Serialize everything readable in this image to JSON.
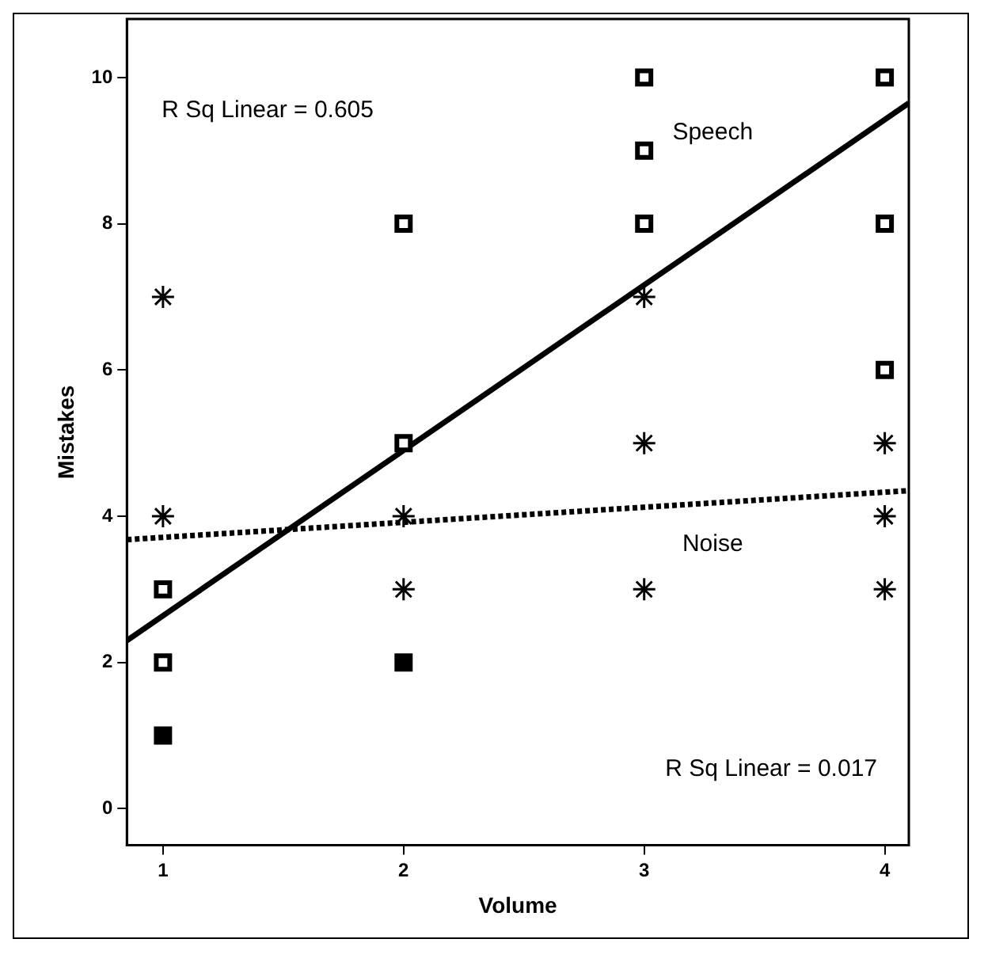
{
  "chart_data": {
    "type": "scatter",
    "xlabel": "Volume",
    "ylabel": "Mistakes",
    "xlim": [
      0.85,
      4.1
    ],
    "xticks": [
      1,
      2,
      3,
      4
    ],
    "ylim": [
      -0.5,
      10.8
    ],
    "yticks": [
      0,
      2,
      4,
      6,
      8,
      10
    ],
    "grid": false,
    "legend": false,
    "series": [
      {
        "marker": "square",
        "color": "#000000",
        "x": [
          1,
          1,
          2,
          2,
          3,
          3,
          3,
          4,
          4,
          4
        ],
        "values": [
          3,
          2,
          8,
          5,
          10,
          9,
          8,
          10,
          8,
          6
        ]
      },
      {
        "marker": "square",
        "color": "#000000",
        "colors": [
          "#000000",
          "#000000"
        ],
        "x": [
          1,
          2
        ],
        "values": [
          1,
          2
        ]
      },
      {
        "marker": "cross",
        "color": "#000000",
        "x": [
          1,
          1,
          2,
          2,
          3,
          3,
          3,
          4,
          4,
          4
        ],
        "values": [
          7,
          4,
          4,
          3,
          7,
          5,
          3,
          5,
          4,
          3
        ]
      },
      {
        "type": "line",
        "marker": "none",
        "line_style": "solid",
        "color": "#000000",
        "x": [
          0.85,
          4.1
        ],
        "values": [
          2.3,
          9.65
        ]
      },
      {
        "type": "line",
        "marker": "none",
        "line_style": "dotted",
        "color": "#000000",
        "x": [
          0.85,
          4.1
        ],
        "values": [
          3.68,
          4.35
        ]
      }
    ],
    "annotations": [
      "R Sq Linear = 0.605",
      "R Sq Linear = 0.017",
      "Speech",
      "Noise"
    ]
  }
}
